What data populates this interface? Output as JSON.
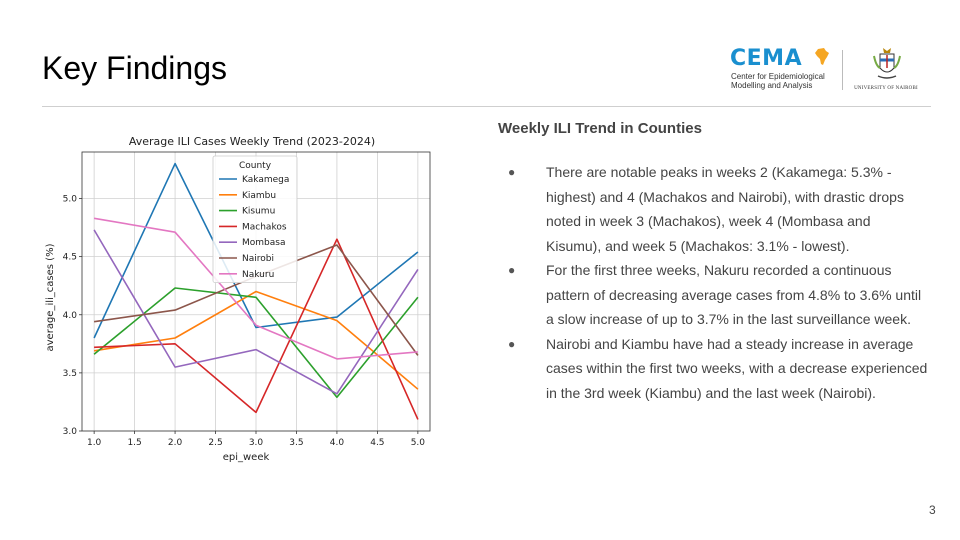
{
  "slide": {
    "title": "Key Findings",
    "subtitle": "Weekly ILI Trend in Counties",
    "page_number": "3",
    "bullets": [
      "There are notable peaks in weeks 2 (Kakamega: 5.3% - highest) and 4 (Machakos and Nairobi), with drastic drops noted in week 3 (Machakos), week 4 (Mombasa and Kisumu), and week 5 (Machakos: 3.1% - lowest).",
      "For the first three weeks, Nakuru recorded a continuous pattern of decreasing average cases from 4.8% to 3.6% until a slow increase of up to 3.7% in the last surveillance week.",
      "Nairobi and Kiambu have had a steady increase in average cases within the first two weeks, with a decrease experienced in the 3rd week (Kiambu) and the last week (Nairobi)."
    ]
  },
  "logos": {
    "cema_name": "CEMA",
    "cema_line1": "Center for Epidemiological",
    "cema_line2": "Modelling and Analysis",
    "uon_name": "UNIVERSITY OF NAIROBI",
    "cema_color": "#1a8fcf",
    "cema_accent": "#f5a623"
  },
  "chart_data": {
    "type": "line",
    "title": "Average ILI Cases Weekly Trend (2023-2024)",
    "xlabel": "epi_week",
    "ylabel": "average_ili_cases (%)",
    "xlim": [
      0.85,
      5.15
    ],
    "ylim": [
      3.0,
      5.4
    ],
    "xticks": [
      1.0,
      1.5,
      2.0,
      2.5,
      3.0,
      3.5,
      4.0,
      4.5,
      5.0
    ],
    "yticks": [
      3.0,
      3.5,
      4.0,
      4.5,
      5.0
    ],
    "grid": true,
    "legend_title": "County",
    "legend_placement": "upper-center",
    "x": [
      1,
      2,
      3,
      4,
      5
    ],
    "series": [
      {
        "name": "Kakamega",
        "color": "#1f77b4",
        "values": [
          3.8,
          5.3,
          3.89,
          3.98,
          4.54
        ]
      },
      {
        "name": "Kiambu",
        "color": "#ff7f0e",
        "values": [
          3.69,
          3.8,
          4.2,
          3.95,
          3.36
        ]
      },
      {
        "name": "Kisumu",
        "color": "#2ca02c",
        "values": [
          3.66,
          4.23,
          4.15,
          3.29,
          4.15
        ]
      },
      {
        "name": "Machakos",
        "color": "#d62728",
        "values": [
          3.72,
          3.75,
          3.16,
          4.65,
          3.1
        ]
      },
      {
        "name": "Mombasa",
        "color": "#9467bd",
        "values": [
          4.73,
          3.55,
          3.7,
          3.32,
          4.39
        ]
      },
      {
        "name": "Nairobi",
        "color": "#8c564b",
        "values": [
          3.94,
          4.04,
          4.33,
          4.6,
          3.65
        ]
      },
      {
        "name": "Nakuru",
        "color": "#e377c2",
        "values": [
          4.83,
          4.71,
          3.91,
          3.62,
          3.68
        ]
      }
    ]
  }
}
